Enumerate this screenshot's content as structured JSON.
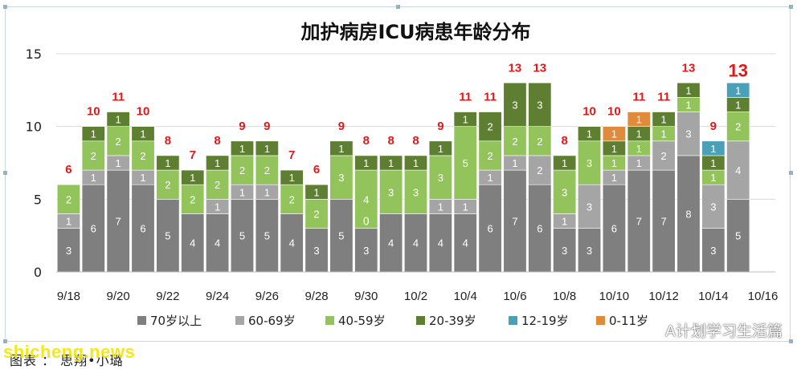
{
  "chart_data": {
    "type": "bar",
    "stacked": true,
    "title": "加护病房ICU病患年龄分布",
    "ylim": [
      0,
      15
    ],
    "yticks": [
      0,
      5,
      10,
      15
    ],
    "grid": true,
    "legend_position": "bottom",
    "categories": [
      "9/18",
      "9/19",
      "9/20",
      "9/21",
      "9/22",
      "9/23",
      "9/24",
      "9/25",
      "9/26",
      "9/27",
      "9/28",
      "9/29",
      "9/30",
      "10/1",
      "10/2",
      "10/3",
      "10/4",
      "10/5",
      "10/6",
      "10/7",
      "10/8",
      "10/9",
      "10/10",
      "10/11",
      "10/12",
      "10/13",
      "10/14",
      "10/15",
      "10/16"
    ],
    "x_tick_labels": [
      "9/18",
      "9/20",
      "9/22",
      "9/24",
      "9/26",
      "9/28",
      "9/30",
      "10/2",
      "10/4",
      "10/6",
      "10/8",
      "10/10",
      "10/12",
      "10/14",
      "10/16"
    ],
    "totals": [
      "6",
      "10",
      "11",
      "10",
      "8",
      "7",
      "8",
      "9",
      "9",
      "7",
      "6",
      "9",
      "8",
      "8",
      "8",
      "9",
      "11",
      "11",
      "13",
      "13",
      "8",
      "10",
      "10",
      "11",
      "11",
      "13",
      "9",
      "13",
      ""
    ],
    "series": [
      {
        "name": "70岁以上",
        "color": "#7f7f7f",
        "values": [
          3,
          6,
          7,
          6,
          5,
          4,
          4,
          5,
          5,
          4,
          3,
          5,
          3,
          4,
          4,
          4,
          4,
          6,
          7,
          6,
          3,
          3,
          6,
          7,
          7,
          8,
          3,
          5,
          0
        ]
      },
      {
        "name": "60-69岁",
        "color": "#a5a5a5",
        "values": [
          1,
          1,
          1,
          1,
          0,
          0,
          1,
          1,
          1,
          0,
          0,
          0,
          0,
          0,
          0,
          1,
          1,
          1,
          1,
          2,
          1,
          3,
          1,
          1,
          2,
          3,
          3,
          4,
          0
        ]
      },
      {
        "name": "40-59岁",
        "color": "#92c45b",
        "values": [
          2,
          2,
          2,
          2,
          2,
          2,
          2,
          2,
          2,
          2,
          2,
          3,
          4,
          3,
          3,
          3,
          5,
          2,
          2,
          2,
          3,
          3,
          1,
          1,
          1,
          1,
          1,
          2,
          0
        ]
      },
      {
        "name": "20-39岁",
        "color": "#5e7f32",
        "values": [
          0,
          1,
          1,
          1,
          1,
          1,
          1,
          1,
          1,
          1,
          1,
          1,
          1,
          1,
          1,
          1,
          1,
          2,
          3,
          3,
          1,
          1,
          1,
          1,
          1,
          1,
          1,
          1,
          0
        ]
      },
      {
        "name": "12-19岁",
        "color": "#4aa0b6",
        "values": [
          0,
          0,
          0,
          0,
          0,
          0,
          0,
          0,
          0,
          0,
          0,
          0,
          0,
          0,
          0,
          0,
          0,
          0,
          0,
          0,
          0,
          0,
          0,
          0,
          0,
          0,
          1,
          1,
          0
        ]
      },
      {
        "name": "0-11岁",
        "color": "#e08a3c",
        "values": [
          0,
          0,
          0,
          0,
          0,
          0,
          0,
          0,
          0,
          0,
          0,
          0,
          0,
          0,
          0,
          0,
          0,
          0,
          0,
          0,
          0,
          0,
          1,
          1,
          0,
          0,
          0,
          0,
          0
        ]
      }
    ],
    "segment_labels": [
      [
        "3",
        "1",
        "2",
        ""
      ],
      [
        "6",
        "1",
        "2",
        "1"
      ],
      [
        "7",
        "1",
        "2",
        "1"
      ],
      [
        "6",
        "1",
        "2",
        "1"
      ],
      [
        "5",
        "",
        "2",
        "1"
      ],
      [
        "4",
        "",
        "2",
        "1"
      ],
      [
        "4",
        "1",
        "2",
        "1"
      ],
      [
        "5",
        "1",
        "2",
        "1"
      ],
      [
        "5",
        "1",
        "2",
        "1"
      ],
      [
        "4",
        "",
        "2",
        "1"
      ],
      [
        "3",
        "",
        "2",
        "1"
      ],
      [
        "5",
        "",
        "3",
        "1"
      ],
      [
        "3",
        "0",
        "4",
        "1"
      ],
      [
        "4",
        "",
        "3",
        "1"
      ],
      [
        "4",
        "",
        "3",
        "1"
      ],
      [
        "4",
        "1",
        "3",
        "1"
      ],
      [
        "4",
        "1",
        "5",
        "1"
      ],
      [
        "6",
        "1",
        "2",
        "2"
      ],
      [
        "7",
        "1",
        "2",
        "3"
      ],
      [
        "6",
        "2",
        "2",
        "3"
      ],
      [
        "3",
        "1",
        "3",
        "1"
      ],
      [
        "3",
        "3",
        "3",
        "1"
      ],
      [
        "6",
        "1",
        "1",
        "1",
        "",
        "1"
      ],
      [
        "7",
        "1",
        "1",
        "1",
        "",
        "1"
      ],
      [
        "7",
        "2",
        "1",
        "1"
      ],
      [
        "8",
        "3",
        "1",
        "1"
      ],
      [
        "3",
        "3",
        "1",
        "1",
        "1"
      ],
      [
        "5",
        "4",
        "2",
        "1",
        "1"
      ],
      [
        "",
        "",
        "",
        ""
      ]
    ]
  },
  "footer": {
    "source": "图表 ： 思翔•小璐",
    "watermark": "shicheng.news",
    "account": "A计划学习生活篇"
  }
}
